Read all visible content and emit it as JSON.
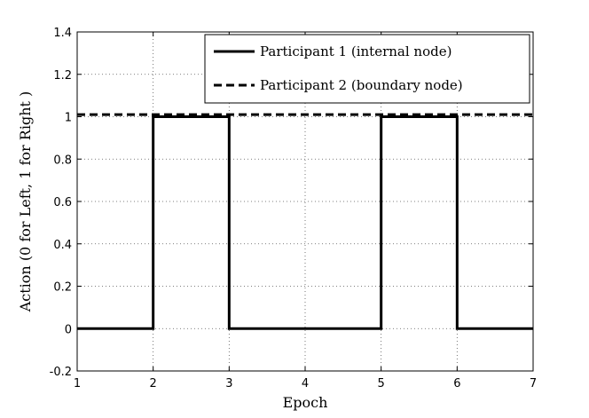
{
  "chart_data": {
    "type": "line",
    "xlabel": "Epoch",
    "ylabel": "Action (0 for Left, 1 for Right )",
    "xlim": [
      1,
      7
    ],
    "ylim": [
      -0.2,
      1.4
    ],
    "xticks": [
      "1",
      "2",
      "3",
      "4",
      "5",
      "6",
      "7"
    ],
    "yticks": [
      "-0.2",
      "0",
      "0.2",
      "0.4",
      "0.6",
      "0.8",
      "1",
      "1.2",
      "1.4"
    ],
    "grid": true,
    "legend_position": "top-right",
    "series": [
      {
        "name": "Participant 1 (internal node)",
        "style": "solid",
        "step": true,
        "x": [
          1,
          2,
          2,
          3,
          3,
          5,
          5,
          6,
          6,
          7
        ],
        "y": [
          0,
          0,
          1,
          1,
          0,
          0,
          1,
          1,
          0,
          0
        ]
      },
      {
        "name": "Participant 2 (boundary node)",
        "style": "dashed",
        "step": false,
        "x": [
          1,
          7
        ],
        "y": [
          1.01,
          1.01
        ]
      }
    ]
  }
}
